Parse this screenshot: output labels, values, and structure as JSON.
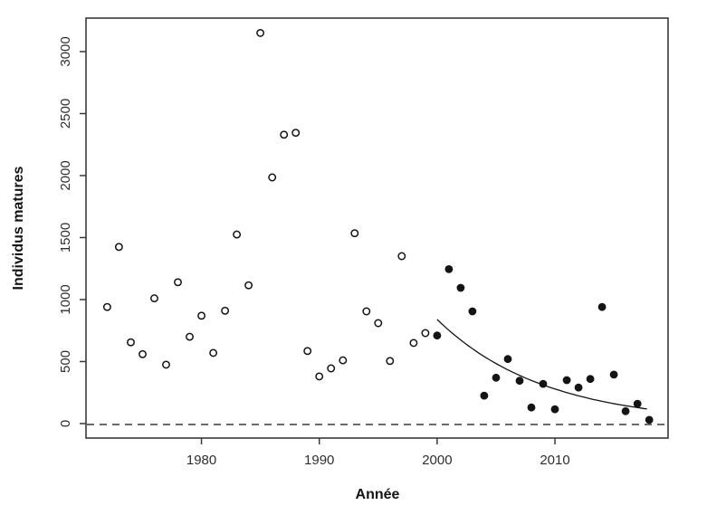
{
  "figure": {
    "background_color": "#ffffff",
    "frame_color": "#3a3a3a",
    "point_color": "#141414",
    "tick_label_color": "#2e2e2e"
  },
  "chart_data": {
    "type": "scatter",
    "title": "",
    "xlabel": "Année",
    "ylabel": "Individus matures",
    "xlim": [
      1970.2,
      2019.6
    ],
    "ylim": [
      -117,
      3270
    ],
    "x_ticks": [
      1980,
      1990,
      2000,
      2010
    ],
    "y_ticks": [
      0,
      500,
      1000,
      1500,
      2000,
      2500,
      3000
    ],
    "grid": false,
    "legend": "none",
    "series": [
      {
        "name": "individus-matures-historique",
        "marker": "open-circle",
        "points": [
          [
            1972,
            940
          ],
          [
            1973,
            1425
          ],
          [
            1974,
            655
          ],
          [
            1975,
            560
          ],
          [
            1976,
            1010
          ],
          [
            1977,
            475
          ],
          [
            1978,
            1140
          ],
          [
            1979,
            700
          ],
          [
            1980,
            870
          ],
          [
            1981,
            570
          ],
          [
            1982,
            910
          ],
          [
            1983,
            1525
          ],
          [
            1984,
            1115
          ],
          [
            1985,
            3150
          ],
          [
            1986,
            1985
          ],
          [
            1987,
            2330
          ],
          [
            1988,
            2345
          ],
          [
            1989,
            585
          ],
          [
            1990,
            380
          ],
          [
            1991,
            445
          ],
          [
            1992,
            510
          ],
          [
            1993,
            1535
          ],
          [
            1994,
            905
          ],
          [
            1995,
            810
          ],
          [
            1996,
            505
          ],
          [
            1997,
            1350
          ],
          [
            1998,
            650
          ],
          [
            1999,
            730
          ]
        ]
      },
      {
        "name": "individus-matures-recent",
        "marker": "filled-circle",
        "points": [
          [
            2000,
            710
          ],
          [
            2001,
            1245
          ],
          [
            2002,
            1095
          ],
          [
            2003,
            905
          ],
          [
            2004,
            225
          ],
          [
            2005,
            370
          ],
          [
            2006,
            520
          ],
          [
            2007,
            345
          ],
          [
            2008,
            130
          ],
          [
            2009,
            320
          ],
          [
            2010,
            115
          ],
          [
            2011,
            350
          ],
          [
            2012,
            290
          ],
          [
            2013,
            360
          ],
          [
            2014,
            940
          ],
          [
            2015,
            395
          ],
          [
            2016,
            100
          ],
          [
            2017,
            160
          ],
          [
            2018,
            30
          ]
        ]
      }
    ],
    "zero_reference_line": {
      "value": 0,
      "style": "dashed"
    },
    "trend_curve": {
      "type": "exponential",
      "start_year": 2000,
      "end_year": 2017.8,
      "start_value": 840,
      "end_value": 118
    }
  }
}
